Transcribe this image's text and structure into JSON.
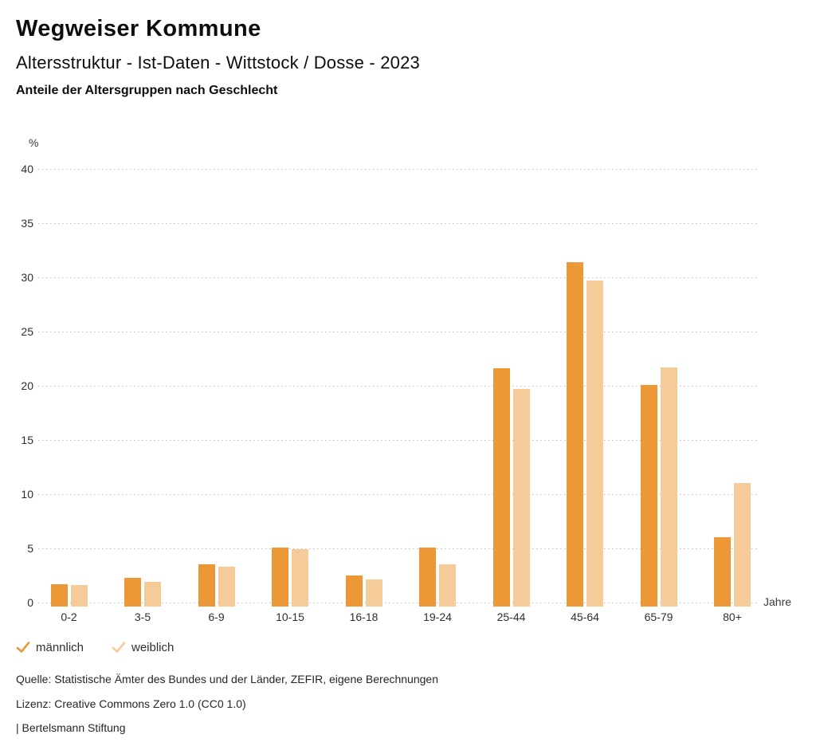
{
  "header": {
    "title": "Wegweiser Kommune",
    "subtitle": "Altersstruktur - Ist-Daten - Wittstock / Dosse - 2023"
  },
  "chart_data": {
    "type": "bar",
    "title": "Anteile der Altersgruppen nach Geschlecht",
    "categories": [
      "0-2",
      "3-5",
      "6-9",
      "10-15",
      "16-18",
      "19-24",
      "25-44",
      "45-64",
      "65-79",
      "80+"
    ],
    "series": [
      {
        "name": "männlich",
        "color": "#EC9836",
        "values": [
          1.7,
          2.3,
          3.5,
          5.1,
          2.5,
          5.1,
          21.6,
          31.4,
          20.1,
          6.0
        ]
      },
      {
        "name": "weiblich",
        "color": "#F5CB9A",
        "values": [
          1.6,
          1.9,
          3.3,
          4.9,
          2.1,
          3.5,
          19.7,
          29.7,
          21.7,
          11.0
        ]
      }
    ],
    "xlabel": "Jahre",
    "ylabel": "%",
    "ylim": [
      0,
      40
    ],
    "ytick_step": 5,
    "grid": "horizontal-dotted",
    "grid_color": "#bdbdbd",
    "legend_position": "bottom-left",
    "legend_marker": "check-icon"
  },
  "footer": {
    "source": "Quelle: Statistische Ämter des Bundes und der Länder, ZEFIR, eigene Berechnungen",
    "license": "Lizenz: Creative Commons Zero 1.0 (CC0 1.0)",
    "attribution": "| Bertelsmann Stiftung"
  }
}
